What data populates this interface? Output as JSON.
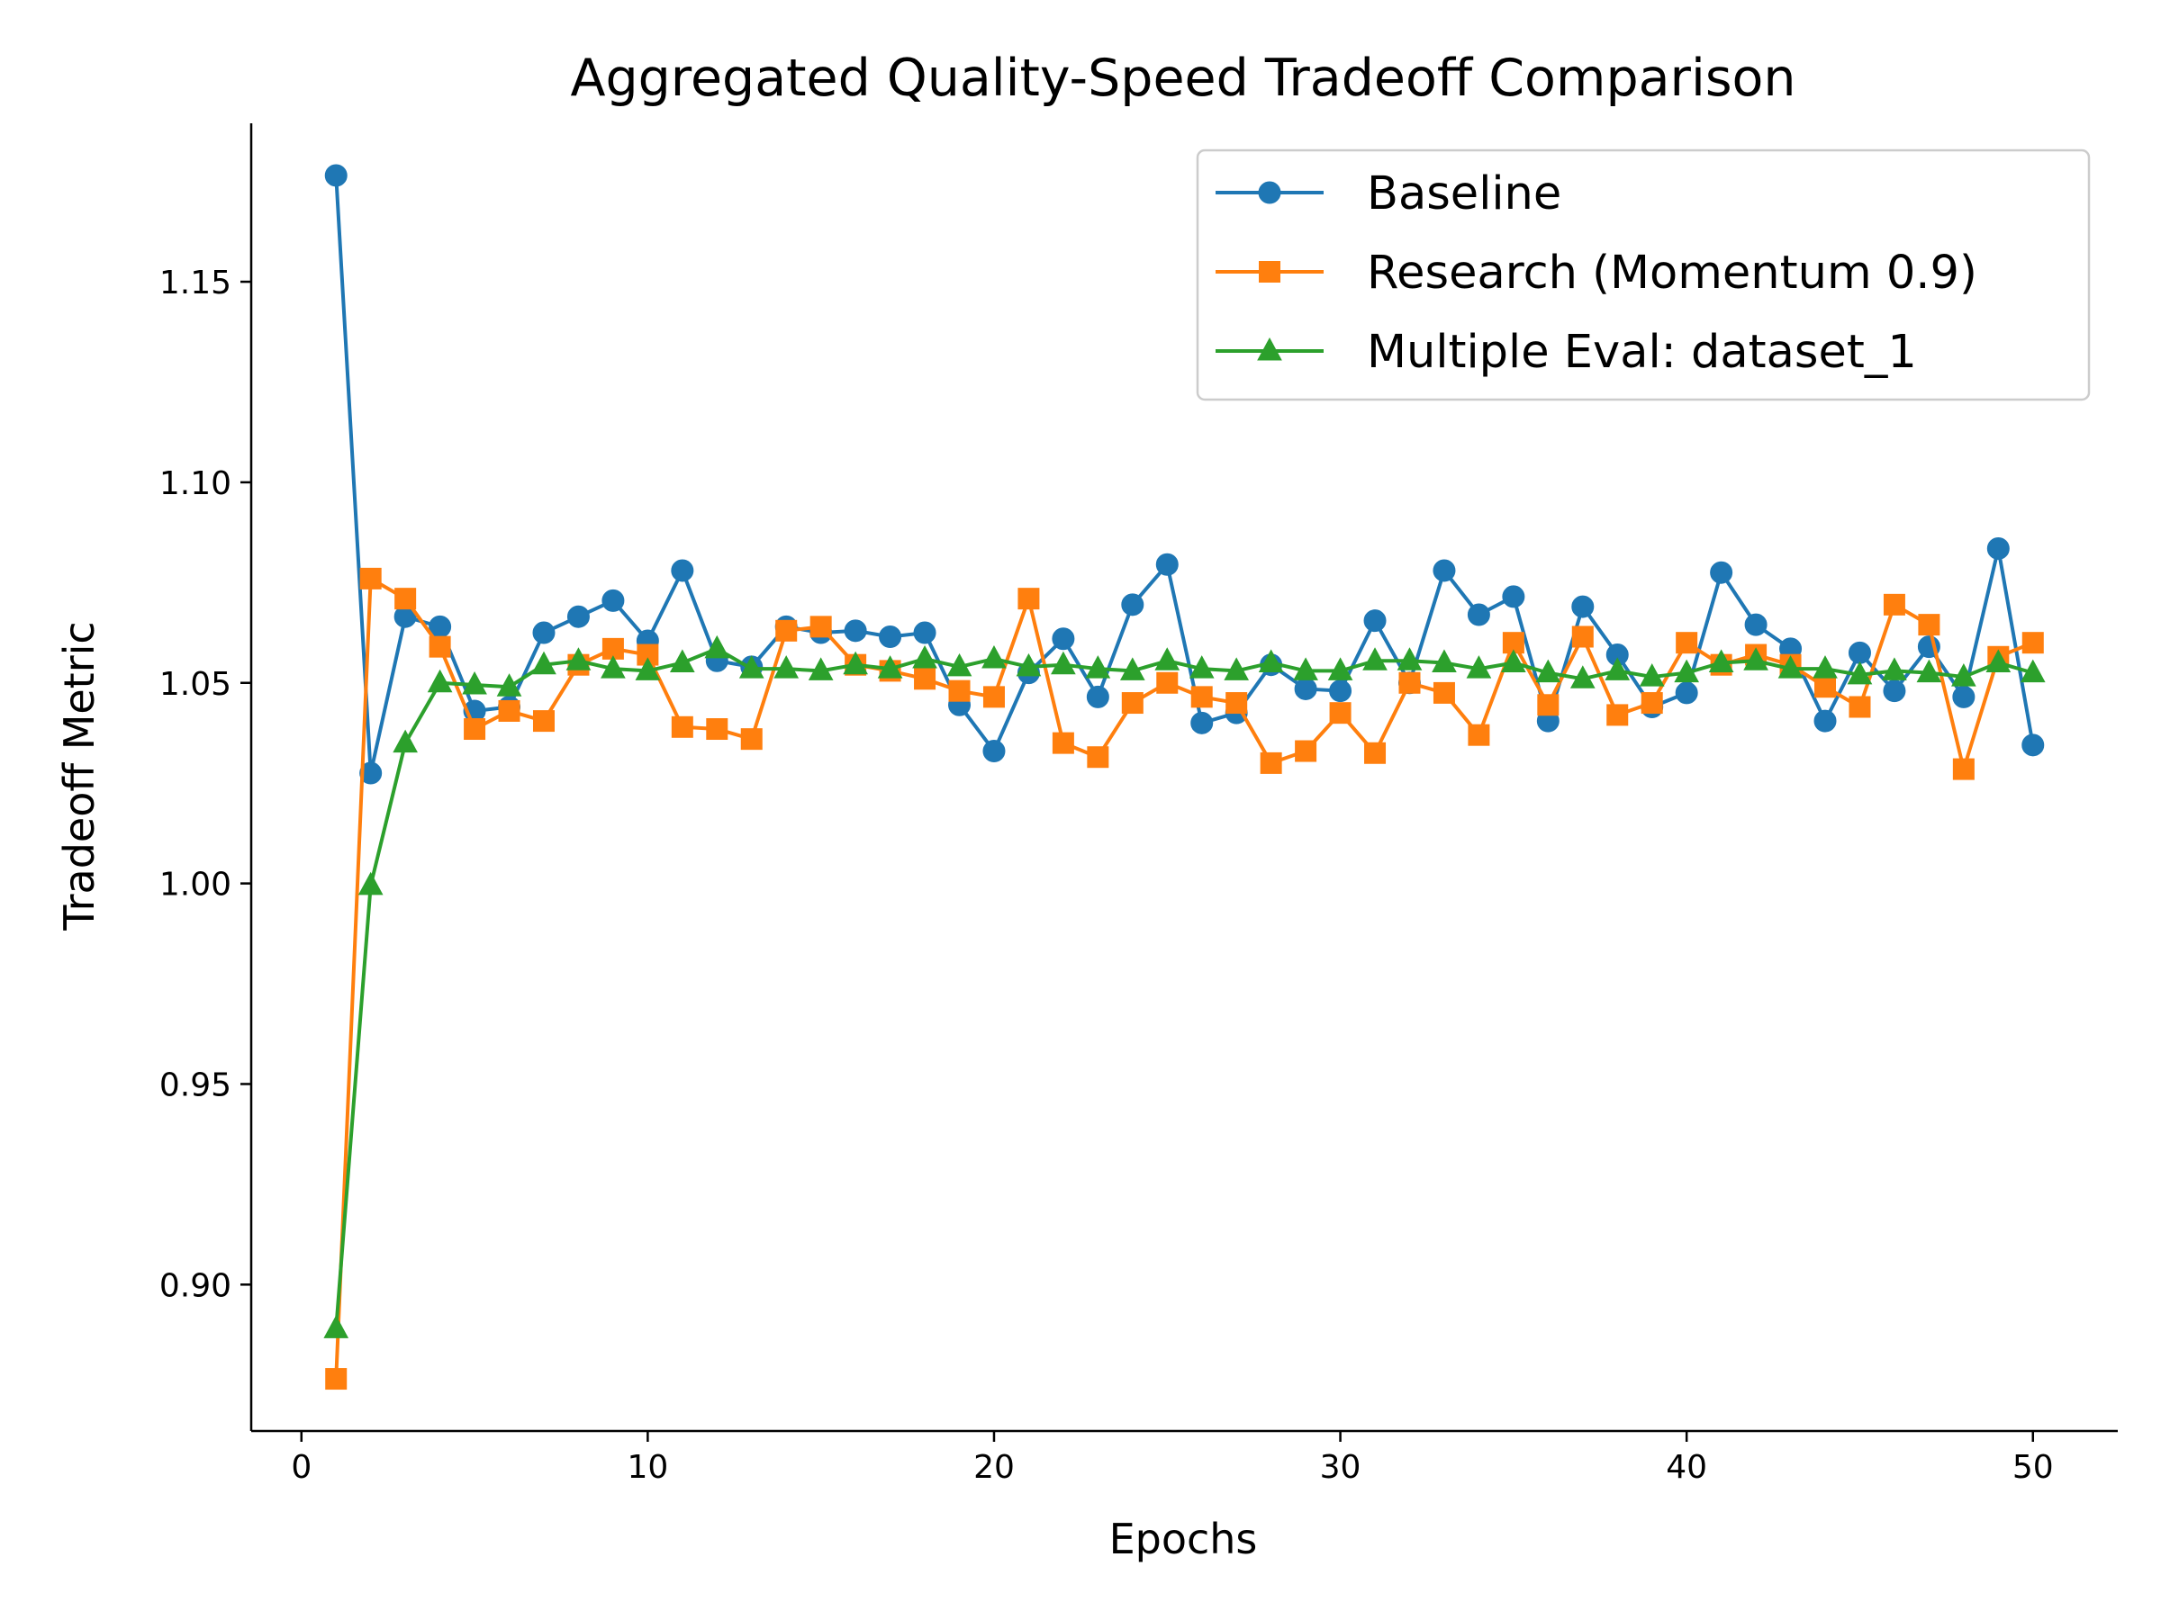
{
  "chart_data": {
    "type": "line",
    "title": "Aggregated Quality-Speed Tradeoff Comparison",
    "xlabel": "Epochs",
    "ylabel": "Tradeoff Metric",
    "xlim": [
      -1.45,
      52.45
    ],
    "ylim": [
      0.8635,
      1.1895
    ],
    "xticks": [
      0,
      10,
      20,
      30,
      40,
      50
    ],
    "xtick_labels": [
      "0",
      "10",
      "20",
      "30",
      "40",
      "50"
    ],
    "yticks": [
      0.9,
      0.95,
      1.0,
      1.05,
      1.1,
      1.15
    ],
    "ytick_labels": [
      "0.90",
      "0.95",
      "1.00",
      "1.05",
      "1.10",
      "1.15"
    ],
    "grid": false,
    "legend_position": "upper right",
    "x": [
      1,
      2,
      3,
      4,
      5,
      6,
      7,
      8,
      9,
      10,
      11,
      12,
      13,
      14,
      15,
      16,
      17,
      18,
      19,
      20,
      21,
      22,
      23,
      24,
      25,
      26,
      27,
      28,
      29,
      30,
      31,
      32,
      33,
      34,
      35,
      36,
      37,
      38,
      39,
      40,
      41,
      42,
      43,
      44,
      45,
      46,
      47,
      48,
      49,
      50
    ],
    "series": [
      {
        "name": "Baseline",
        "color": "#1f77b4",
        "marker": "circle",
        "values": [
          1.1765,
          1.0275,
          1.0665,
          1.064,
          1.043,
          1.044,
          1.0625,
          1.0665,
          1.0705,
          1.0605,
          1.078,
          1.0555,
          1.054,
          1.064,
          1.0625,
          1.063,
          1.0615,
          1.0625,
          1.0445,
          1.033,
          1.0525,
          1.061,
          1.0465,
          1.0695,
          1.0795,
          1.04,
          1.0425,
          1.0545,
          1.0485,
          1.048,
          1.0655,
          1.05,
          1.078,
          1.067,
          1.0715,
          1.0405,
          1.069,
          1.057,
          1.044,
          1.0475,
          1.0775,
          1.0645,
          1.0585,
          1.0405,
          1.0575,
          1.048,
          1.059,
          1.0465,
          1.0835,
          1.0345
        ]
      },
      {
        "name": "Research (Momentum 0.9)",
        "color": "#ff7f0e",
        "marker": "square",
        "values": [
          0.8765,
          1.076,
          1.071,
          1.059,
          1.0385,
          1.043,
          1.0405,
          1.0545,
          1.0585,
          1.057,
          1.039,
          1.0385,
          1.036,
          1.063,
          1.064,
          1.0545,
          1.053,
          1.051,
          1.048,
          1.0465,
          1.071,
          1.035,
          1.0315,
          1.045,
          1.05,
          1.0465,
          1.045,
          1.03,
          1.033,
          1.0425,
          1.0325,
          1.05,
          1.0475,
          1.037,
          1.06,
          1.0445,
          1.0615,
          1.042,
          1.045,
          1.06,
          1.0545,
          1.057,
          1.0545,
          1.049,
          1.044,
          1.0695,
          1.0645,
          1.0285,
          1.0565,
          1.06
        ]
      },
      {
        "name": "Multiple Eval: dataset_1",
        "color": "#2ca02c",
        "marker": "triangle",
        "values": [
          0.889,
          0.9995,
          1.035,
          1.05,
          1.0495,
          1.049,
          1.0545,
          1.0555,
          1.0535,
          1.053,
          1.055,
          1.0585,
          1.0535,
          1.0535,
          1.053,
          1.0545,
          1.0535,
          1.056,
          1.054,
          1.056,
          1.054,
          1.0545,
          1.0535,
          1.053,
          1.0555,
          1.0535,
          1.053,
          1.055,
          1.053,
          1.053,
          1.0555,
          1.0555,
          1.055,
          1.0535,
          1.055,
          1.0525,
          1.051,
          1.053,
          1.0515,
          1.0525,
          1.055,
          1.0555,
          1.0535,
          1.0535,
          1.052,
          1.053,
          1.0525,
          1.0515,
          1.055,
          1.0525
        ]
      }
    ]
  }
}
